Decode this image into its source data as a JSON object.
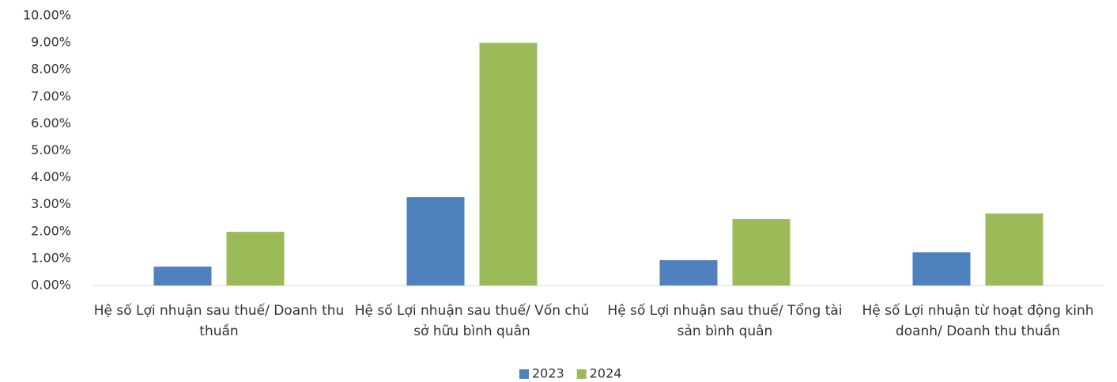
{
  "chart_data": {
    "type": "bar",
    "categories": [
      "Hệ số Lợi nhuận sau thuế/ Doanh thu thuần",
      "Hệ số Lợi nhuận sau thuế/ Vốn chủ sở hữu bình quân",
      "Hệ số Lợi nhuận sau thuế/ Tổng tài sản bình quân",
      "Hệ số Lợi nhuận từ hoạt động kinh doanh/ Doanh thu thuần"
    ],
    "series": [
      {
        "name": "2023",
        "color": "#4f81bd",
        "values": [
          0.7,
          3.28,
          0.94,
          1.23
        ]
      },
      {
        "name": "2024",
        "color": "#9bbb59",
        "values": [
          1.99,
          9.0,
          2.46,
          2.67
        ]
      }
    ],
    "ylim": [
      0,
      10
    ],
    "yticks": [
      {
        "value": 0,
        "label": "0.00%"
      },
      {
        "value": 1,
        "label": "1.00%"
      },
      {
        "value": 2,
        "label": "2.00%"
      },
      {
        "value": 3,
        "label": "3.00%"
      },
      {
        "value": 4,
        "label": "4.00%"
      },
      {
        "value": 5,
        "label": "5.00%"
      },
      {
        "value": 6,
        "label": "6.00%"
      },
      {
        "value": 7,
        "label": "7.00%"
      },
      {
        "value": 8,
        "label": "8.00%"
      },
      {
        "value": 9,
        "label": "9.00%"
      },
      {
        "value": 10,
        "label": "10.00%"
      }
    ],
    "grid": false,
    "legend": "bottom"
  }
}
